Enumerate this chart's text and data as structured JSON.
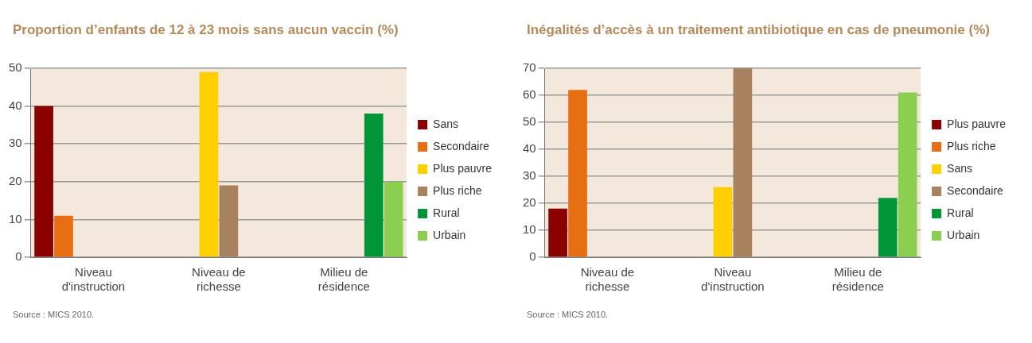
{
  "chart_data": [
    {
      "type": "bar",
      "title": "Proportion d’enfants de 12 à 23 mois sans aucun vaccin (%)",
      "categories": [
        "Niveau d'instruction",
        "Niveau de richesse",
        "Milieu de résidence"
      ],
      "series": [
        {
          "name": "Sans",
          "color": "#8b0000",
          "values": [
            40,
            null,
            null
          ]
        },
        {
          "name": "Secondaire",
          "color": "#e86e14",
          "values": [
            11,
            null,
            null
          ]
        },
        {
          "name": "Plus pauvre",
          "color": "#ffd000",
          "values": [
            null,
            49,
            null
          ]
        },
        {
          "name": "Plus riche",
          "color": "#a8825e",
          "values": [
            null,
            19,
            null
          ]
        },
        {
          "name": "Rural",
          "color": "#009638",
          "values": [
            null,
            null,
            38
          ]
        },
        {
          "name": "Urbain",
          "color": "#8ccf50",
          "values": [
            null,
            null,
            20
          ]
        }
      ],
      "ylim": [
        0,
        50
      ],
      "yticks": [
        0,
        10,
        20,
        30,
        40,
        50
      ],
      "grid": "y",
      "legend": "right",
      "annotations": [
        "Source : MICS 2010."
      ]
    },
    {
      "type": "bar",
      "title": "Inégalités d’accès à un traitement antibiotique en cas de pneumonie (%)",
      "categories": [
        "Niveau de richesse",
        "Niveau d'instruction",
        "Milieu de résidence"
      ],
      "series": [
        {
          "name": "Plus pauvre",
          "color": "#8b0000",
          "values": [
            18,
            null,
            null
          ]
        },
        {
          "name": "Plus riche",
          "color": "#e86e14",
          "values": [
            62,
            null,
            null
          ]
        },
        {
          "name": "Sans",
          "color": "#ffd000",
          "values": [
            null,
            26,
            null
          ]
        },
        {
          "name": "Secondaire",
          "color": "#a8825e",
          "values": [
            null,
            70,
            null
          ]
        },
        {
          "name": "Rural",
          "color": "#009638",
          "values": [
            null,
            null,
            22
          ]
        },
        {
          "name": "Urbain",
          "color": "#8ccf50",
          "values": [
            null,
            null,
            61
          ]
        }
      ],
      "ylim": [
        0,
        70
      ],
      "yticks": [
        0,
        10,
        20,
        30,
        40,
        50,
        60,
        70
      ],
      "grid": "y",
      "legend": "right",
      "annotations": [
        "Source : MICS 2010."
      ]
    }
  ]
}
